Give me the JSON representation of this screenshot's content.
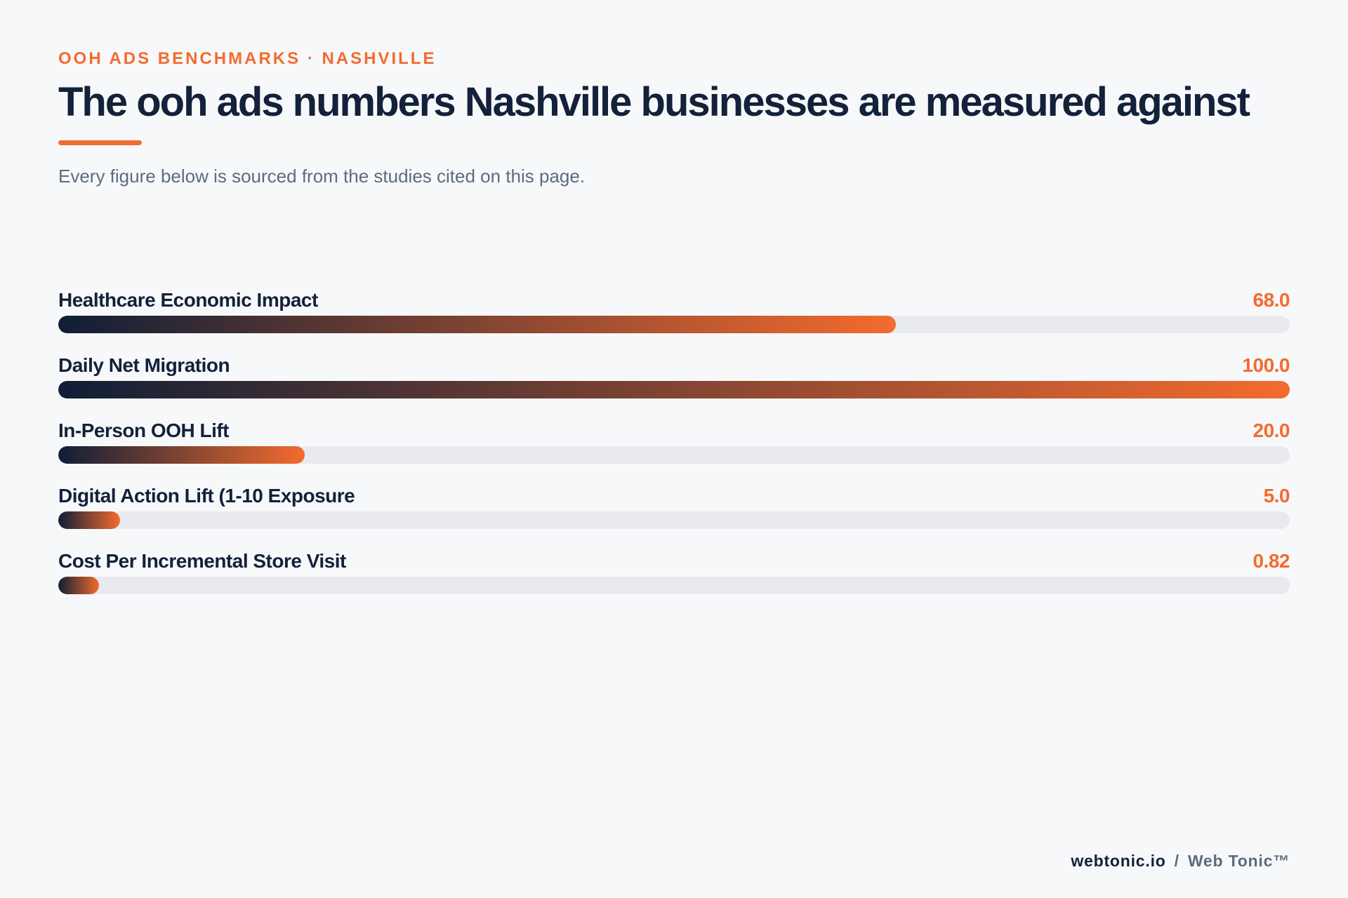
{
  "header": {
    "eyebrow": "OOH ADS BENCHMARKS · NASHVILLE",
    "title": "The ooh ads numbers Nashville businesses are measured against",
    "subtitle": "Every figure below is sourced from the studies cited on this page."
  },
  "chart_data": {
    "type": "bar",
    "orientation": "horizontal",
    "title": "The ooh ads numbers Nashville businesses are measured against",
    "subtitle": "Every figure below is sourced from the studies cited on this page.",
    "categories": [
      "Healthcare Economic Impact",
      "Daily Net Migration",
      "In-Person OOH Lift",
      "Digital Action Lift (1-10 Exposure",
      "Cost Per Incremental Store Visit"
    ],
    "values": [
      68.0,
      100.0,
      20.0,
      5.0,
      0.82
    ],
    "value_labels": [
      "68.0",
      "100.0",
      "20.0",
      "5.0",
      "0.82"
    ],
    "xlim": [
      0,
      100
    ],
    "grid": false,
    "legend": "none",
    "colors": {
      "gradient_start": "#0f1e36",
      "gradient_end": "#f46b2e",
      "track": "#e8eaf0",
      "value_text": "#f46b2e",
      "label_text": "#13213a"
    }
  },
  "footer": {
    "site": "webtonic.io",
    "separator": "/",
    "brand": "Web Tonic™"
  }
}
